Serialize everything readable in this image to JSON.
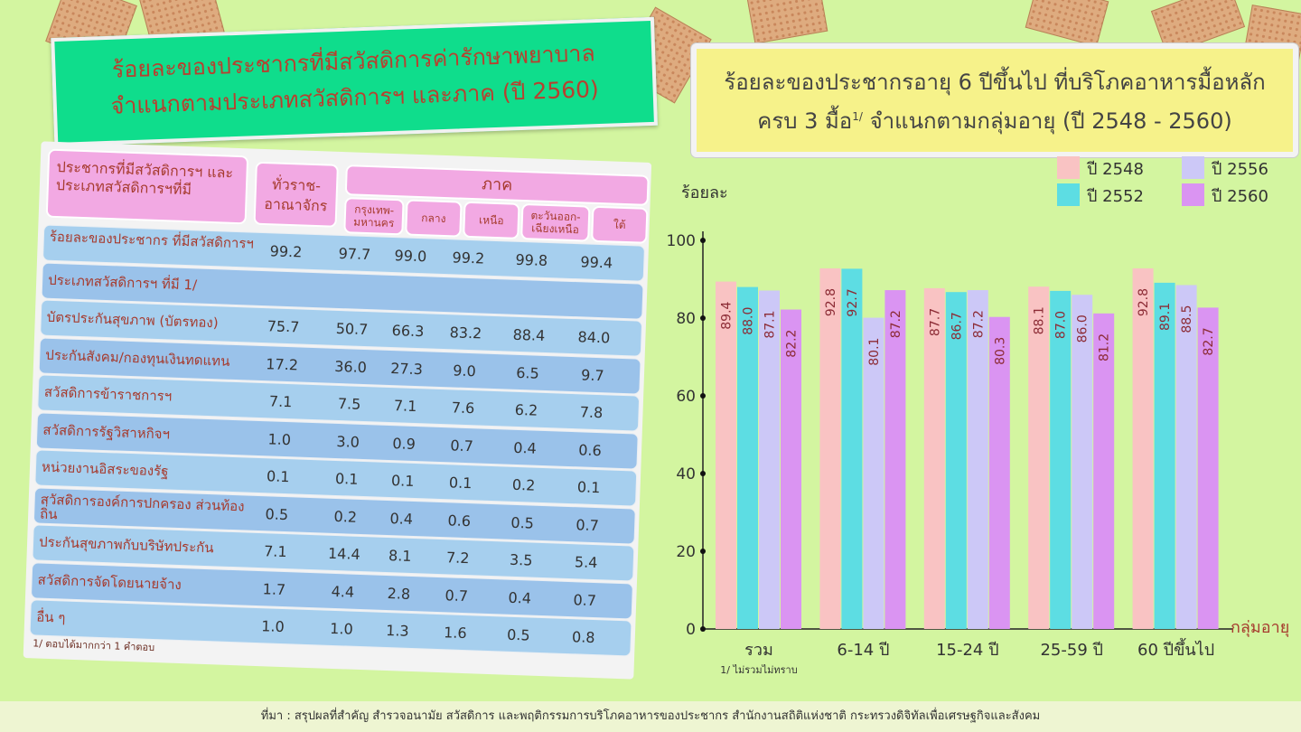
{
  "left": {
    "title_line1": "ร้อยละของประชากรที่มีสวัสดิการค่ารักษาพยาบาล",
    "title_line2": "จำแนกตามประเภทสวัสดิการฯ และภาค (ปี 2560)",
    "header": {
      "col0": "ประชากรที่มีสวัสดิการฯ และประเภทสวัสดิการฯที่มี",
      "col1": "ทั่วราช-อาณาจักร",
      "region": "ภาค",
      "regions": [
        "กรุงเทพ-มหานคร",
        "กลาง",
        "เหนือ",
        "ตะวันออก-เฉียงเหนือ",
        "ใต้"
      ]
    },
    "rows": [
      {
        "label": "ร้อยละของประชากร ที่มีสวัสดิการฯ",
        "values": [
          "99.2",
          "97.7",
          "99.0",
          "99.2",
          "99.8",
          "99.4"
        ]
      },
      {
        "label": "ประเภทสวัสดิการฯ ที่มี 1/",
        "values": []
      },
      {
        "label": "บัตรประกันสุขภาพ (บัตรทอง)",
        "values": [
          "75.7",
          "50.7",
          "66.3",
          "83.2",
          "88.4",
          "84.0"
        ]
      },
      {
        "label": "ประกันสังคม/กองทุนเงินทดแทน",
        "values": [
          "17.2",
          "36.0",
          "27.3",
          "9.0",
          "6.5",
          "9.7"
        ]
      },
      {
        "label": "สวัสดิการข้าราชการฯ",
        "values": [
          "7.1",
          "7.5",
          "7.1",
          "7.6",
          "6.2",
          "7.8"
        ]
      },
      {
        "label": "สวัสดิการรัฐวิสาหกิจฯ",
        "values": [
          "1.0",
          "3.0",
          "0.9",
          "0.7",
          "0.4",
          "0.6"
        ]
      },
      {
        "label": "หน่วยงานอิสระของรัฐ",
        "values": [
          "0.1",
          "0.1",
          "0.1",
          "0.1",
          "0.2",
          "0.1"
        ]
      },
      {
        "label": "สวัสดิการองค์การปกครอง ส่วนท้องถิ่น",
        "values": [
          "0.5",
          "0.2",
          "0.4",
          "0.6",
          "0.5",
          "0.7"
        ]
      },
      {
        "label": "ประกันสุขภาพกับบริษัทประกัน",
        "values": [
          "7.1",
          "14.4",
          "8.1",
          "7.2",
          "3.5",
          "5.4"
        ]
      },
      {
        "label": "สวัสดิการจัดโดยนายจ้าง",
        "values": [
          "1.7",
          "4.4",
          "2.8",
          "0.7",
          "0.4",
          "0.7"
        ]
      },
      {
        "label": "อื่น ๆ",
        "values": [
          "1.0",
          "1.0",
          "1.3",
          "1.6",
          "0.5",
          "0.8"
        ]
      }
    ],
    "footnote": "1/ ตอบได้มากกว่า 1 คำตอบ"
  },
  "right": {
    "title_line1": "ร้อยละของประชากรอายุ 6 ปีขึ้นไป ที่บริโภคอาหารมื้อหลัก",
    "title_line2a": "ครบ 3 มื้อ",
    "title_sup": "1/",
    "title_line2b": "จำแนกตามกลุ่มอายุ (ปี 2548 - 2560)"
  },
  "chart_data": {
    "type": "bar",
    "ylabel": "ร้อยละ",
    "xlabel": "กลุ่มอายุ",
    "ylim": [
      0,
      100
    ],
    "yticks": [
      0,
      20,
      40,
      60,
      80,
      100
    ],
    "categories": [
      "รวม",
      "6-14 ปี",
      "15-24 ปี",
      "25-59 ปี",
      "60 ปีขึ้นไป"
    ],
    "category_note": "1/ ไม่รวมไม่ทราบ",
    "legend_position": "top-right",
    "series": [
      {
        "name": "ปี 2548",
        "color": "#f9c3c3",
        "values": [
          89.4,
          92.8,
          87.7,
          88.1,
          92.8
        ]
      },
      {
        "name": "ปี 2552",
        "color": "#5ddde3",
        "values": [
          88.0,
          92.7,
          86.7,
          87.0,
          89.1
        ]
      },
      {
        "name": "ปี 2556",
        "color": "#ccc8f7",
        "values": [
          87.1,
          80.1,
          87.2,
          86.0,
          88.5
        ]
      },
      {
        "name": "ปี 2560",
        "color": "#da94f2",
        "values": [
          82.2,
          87.2,
          80.3,
          81.2,
          82.7
        ]
      }
    ]
  },
  "source": "ที่มา : สรุปผลที่สำคัญ สำรวจอนามัย สวัสดิการ และพฤติกรรมการบริโภคอาหารของประชากร สำนักงานสถิติแห่งชาติ กระทรวงดิจิทัลเพื่อเศรษฐกิจและสังคม"
}
